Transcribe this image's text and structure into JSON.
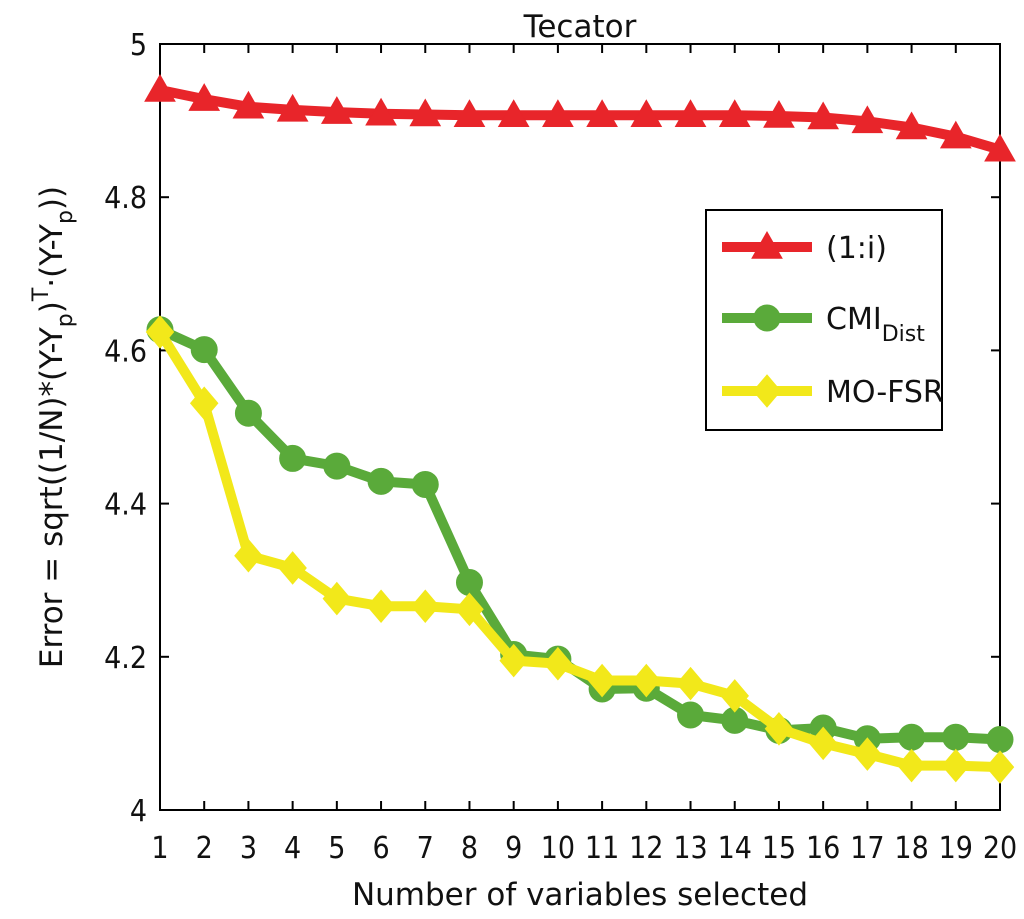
{
  "chart_data": {
    "type": "line",
    "title": "Tecator",
    "xlabel": "Number of variables selected",
    "ylabel": "Error = sqrt((1/N)*(Y-Y_p)^T·(Y-Y_p))",
    "ylabel_parts": {
      "a": "Error = sqrt((1/N)*(Y-Y",
      "sub1": "p",
      "b": ")",
      "sup": "T",
      "c": "·(Y-Y",
      "sub2": "p",
      "d": "))"
    },
    "xlim": [
      1,
      20
    ],
    "ylim": [
      4.0,
      5.0
    ],
    "x": [
      1,
      2,
      3,
      4,
      5,
      6,
      7,
      8,
      9,
      10,
      11,
      12,
      13,
      14,
      15,
      16,
      17,
      18,
      19,
      20
    ],
    "x_ticks": [
      "1",
      "2",
      "3",
      "4",
      "5",
      "6",
      "7",
      "8",
      "9",
      "10",
      "11",
      "12",
      "13",
      "14",
      "15",
      "16",
      "17",
      "18",
      "19",
      "20"
    ],
    "y_ticks": [
      {
        "value": 4.0,
        "label": "4"
      },
      {
        "value": 4.2,
        "label": "4.2"
      },
      {
        "value": 4.4,
        "label": "4.4"
      },
      {
        "value": 4.6,
        "label": "4.6"
      },
      {
        "value": 4.8,
        "label": "4.8"
      },
      {
        "value": 5.0,
        "label": "5"
      }
    ],
    "legend_position": "right",
    "grid": false,
    "series": [
      {
        "name": "(1:i)",
        "name_main": "(1:i)",
        "name_sub": "",
        "color": "#e8252a",
        "marker": "triangle",
        "values": [
          4.94,
          4.928,
          4.918,
          4.914,
          4.911,
          4.909,
          4.908,
          4.907,
          4.907,
          4.907,
          4.907,
          4.907,
          4.907,
          4.907,
          4.906,
          4.904,
          4.899,
          4.891,
          4.879,
          4.862
        ]
      },
      {
        "name": "CMI_Dist",
        "name_main": "CMI",
        "name_sub": "Dist",
        "color": "#5aaa3a",
        "marker": "circle",
        "values": [
          4.627,
          4.601,
          4.518,
          4.459,
          4.449,
          4.429,
          4.425,
          4.297,
          4.203,
          4.197,
          4.158,
          4.159,
          4.124,
          4.117,
          4.104,
          4.107,
          4.093,
          4.095,
          4.095,
          4.092
        ]
      },
      {
        "name": "MO-FSR",
        "name_main": "MO-FSR",
        "name_sub": "",
        "color": "#f2e81a",
        "marker": "diamond",
        "values": [
          4.624,
          4.531,
          4.332,
          4.316,
          4.276,
          4.266,
          4.266,
          4.262,
          4.195,
          4.191,
          4.169,
          4.169,
          4.165,
          4.149,
          4.106,
          4.087,
          4.073,
          4.058,
          4.058,
          4.056
        ]
      }
    ]
  }
}
